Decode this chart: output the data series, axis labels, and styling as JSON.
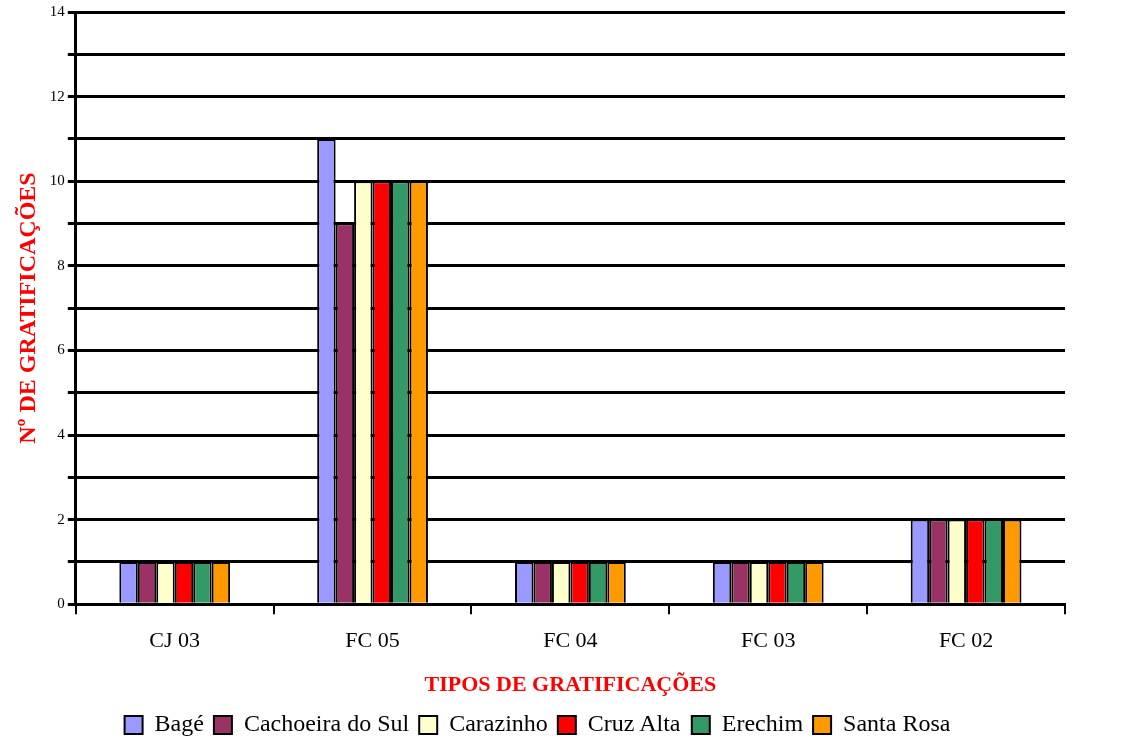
{
  "chart_data": {
    "type": "bar",
    "xlabel": "TIPOS DE GRATIFICAÇÕES",
    "ylabel": "Nº DE GRATIFICAÇÕES",
    "categories": [
      "CJ 03",
      "FC 05",
      "FC 04",
      "FC 03",
      "FC 02"
    ],
    "series": [
      {
        "name": "Bagé",
        "color": "#9999ff",
        "values": [
          1,
          11,
          1,
          1,
          2
        ]
      },
      {
        "name": "Cachoeira do Sul",
        "color": "#993366",
        "values": [
          1,
          9,
          1,
          1,
          2
        ]
      },
      {
        "name": "Carazinho",
        "color": "#ffffcc",
        "values": [
          1,
          10,
          1,
          1,
          2
        ]
      },
      {
        "name": "Cruz Alta",
        "color": "#ff0000",
        "values": [
          1,
          10,
          1,
          1,
          2
        ]
      },
      {
        "name": "Erechim",
        "color": "#339966",
        "values": [
          1,
          10,
          1,
          1,
          2
        ]
      },
      {
        "name": "Santa Rosa",
        "color": "#ff9900",
        "values": [
          1,
          10,
          1,
          1,
          2
        ]
      }
    ],
    "ylim": [
      0,
      14
    ],
    "yticks": [
      0,
      {
        "value": 1,
        "label": null
      },
      2,
      {
        "value": 3,
        "label": null
      },
      4,
      {
        "value": 5,
        "label": null
      },
      6,
      {
        "value": 7,
        "label": null
      },
      8,
      {
        "value": 9,
        "label": null
      },
      10,
      {
        "value": 11,
        "label": null
      },
      12,
      {
        "value": 13,
        "label": null
      },
      14
    ],
    "grid": "y",
    "legend": "bottom"
  }
}
